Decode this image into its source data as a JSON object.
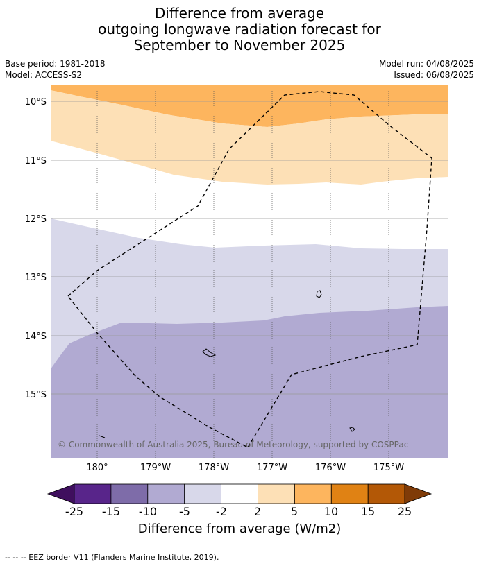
{
  "title": {
    "line1": "Difference from average",
    "line2": "outgoing longwave radiation forecast for",
    "line3": "September to November 2025"
  },
  "meta": {
    "base_period": "Base period: 1981-2018",
    "model": "Model: ACCESS-S2",
    "model_run": "Model run: 04/08/2025",
    "issued": "Issued: 06/08/2025"
  },
  "map": {
    "lat_labels": [
      "10°S",
      "11°S",
      "12°S",
      "13°S",
      "14°S",
      "15°S"
    ],
    "lon_labels": [
      "180°",
      "179°W",
      "178°W",
      "177°W",
      "176°W",
      "175°W"
    ],
    "copyright": "© Commonwealth of Australia 2025, Bureau of Meteorology, supported by COSPPac",
    "colors": {
      "band_5_10": "#fdb55e",
      "band_2_5": "#fde0b6",
      "band_neutral": "#ffffff",
      "band_m5_m2": "#d8d8ea",
      "band_m10_m5": "#b1aad2"
    }
  },
  "colorbar": {
    "tick_labels": [
      "-25",
      "-15",
      "-10",
      "-5",
      "-2",
      "2",
      "5",
      "10",
      "15",
      "25"
    ],
    "colors": [
      "#3f0f5e",
      "#58258a",
      "#7e6ca9",
      "#b1aad2",
      "#d8d8ea",
      "#ffffff",
      "#fde0b6",
      "#fdb55e",
      "#e08214",
      "#b35806",
      "#7f3b08"
    ],
    "title": "Difference from average (W/m2)"
  },
  "footnote": "-- -- -- EEZ border V11 (Flanders Marine Institute, 2019)."
}
